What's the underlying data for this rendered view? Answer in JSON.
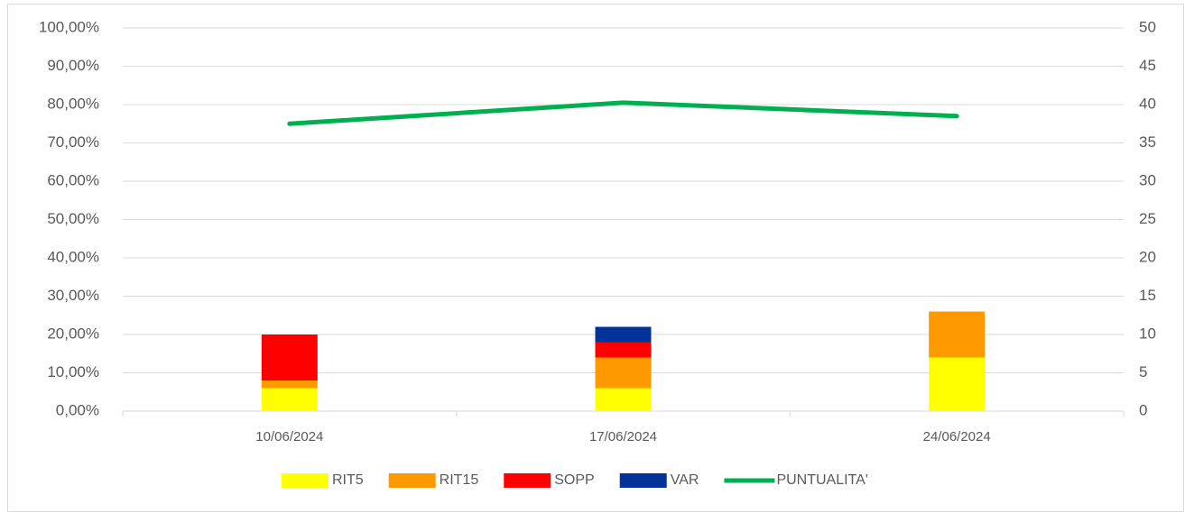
{
  "chart_data": {
    "type": "bar",
    "stacked": true,
    "categories": [
      "10/06/2024",
      "17/06/2024",
      "24/06/2024"
    ],
    "series": [
      {
        "name": "RIT5",
        "type": "bar",
        "axis": "y2",
        "color": "#ffff00",
        "values": [
          3,
          3,
          7
        ]
      },
      {
        "name": "RIT15",
        "type": "bar",
        "axis": "y2",
        "color": "#ff9900",
        "values": [
          1,
          4,
          6
        ]
      },
      {
        "name": "SOPP",
        "type": "bar",
        "axis": "y2",
        "color": "#ff0000",
        "values": [
          6,
          2,
          0
        ]
      },
      {
        "name": "VAR",
        "type": "bar",
        "axis": "y2",
        "color": "#003399",
        "values": [
          0,
          2,
          0
        ]
      },
      {
        "name": "PUNTUALITA'",
        "type": "line",
        "axis": "y",
        "color": "#00b050",
        "values": [
          75,
          80.5,
          77
        ]
      }
    ],
    "ylim": [
      0,
      100
    ],
    "yticks": [
      {
        "value": 0,
        "label": "0,00%"
      },
      {
        "value": 10,
        "label": "10,00%"
      },
      {
        "value": 20,
        "label": "20,00%"
      },
      {
        "value": 30,
        "label": "30,00%"
      },
      {
        "value": 40,
        "label": "40,00%"
      },
      {
        "value": 50,
        "label": "50,00%"
      },
      {
        "value": 60,
        "label": "60,00%"
      },
      {
        "value": 70,
        "label": "70,00%"
      },
      {
        "value": 80,
        "label": "80,00%"
      },
      {
        "value": 90,
        "label": "90,00%"
      },
      {
        "value": 100,
        "label": "100,00%"
      }
    ],
    "y2lim": [
      0,
      50
    ],
    "y2ticks": [
      0,
      5,
      10,
      15,
      20,
      25,
      30,
      35,
      40,
      45,
      50
    ],
    "grid": true,
    "legend": "bottom"
  }
}
